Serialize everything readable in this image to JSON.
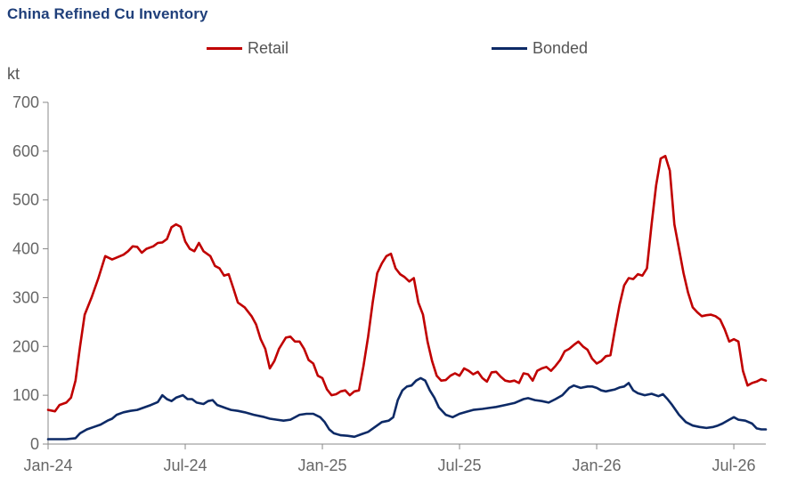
{
  "chart_data": {
    "type": "line",
    "title": "China Refined Cu Inventory",
    "ylabel": "kt",
    "xlabel": "",
    "ylim": [
      0,
      700
    ],
    "yticks": [
      0,
      100,
      200,
      300,
      400,
      500,
      600,
      700
    ],
    "xticks": [
      "Jan-24",
      "Jul-24",
      "Jan-25",
      "Jul-25",
      "Jan-26",
      "Jul-26"
    ],
    "xtick_positions": [
      0,
      6,
      12,
      18,
      24,
      30
    ],
    "xlim": [
      0,
      31.4
    ],
    "legend_position": "top-center",
    "grid": false,
    "series": [
      {
        "name": "Retail",
        "color": "#c00000",
        "points": [
          [
            0.0,
            70
          ],
          [
            0.3,
            67
          ],
          [
            0.5,
            80
          ],
          [
            0.8,
            85
          ],
          [
            1.0,
            95
          ],
          [
            1.2,
            130
          ],
          [
            1.4,
            200
          ],
          [
            1.6,
            265
          ],
          [
            1.9,
            300
          ],
          [
            2.2,
            340
          ],
          [
            2.5,
            385
          ],
          [
            2.8,
            378
          ],
          [
            3.0,
            382
          ],
          [
            3.3,
            388
          ],
          [
            3.5,
            395
          ],
          [
            3.7,
            405
          ],
          [
            3.9,
            404
          ],
          [
            4.1,
            392
          ],
          [
            4.3,
            400
          ],
          [
            4.6,
            405
          ],
          [
            4.8,
            412
          ],
          [
            5.0,
            413
          ],
          [
            5.2,
            420
          ],
          [
            5.4,
            444
          ],
          [
            5.6,
            450
          ],
          [
            5.8,
            445
          ],
          [
            6.0,
            415
          ],
          [
            6.2,
            400
          ],
          [
            6.4,
            395
          ],
          [
            6.6,
            412
          ],
          [
            6.8,
            395
          ],
          [
            7.1,
            385
          ],
          [
            7.3,
            365
          ],
          [
            7.5,
            360
          ],
          [
            7.7,
            345
          ],
          [
            7.9,
            348
          ],
          [
            8.1,
            320
          ],
          [
            8.3,
            290
          ],
          [
            8.6,
            280
          ],
          [
            8.9,
            262
          ],
          [
            9.1,
            245
          ],
          [
            9.3,
            215
          ],
          [
            9.5,
            195
          ],
          [
            9.7,
            155
          ],
          [
            9.9,
            170
          ],
          [
            10.1,
            195
          ],
          [
            10.4,
            218
          ],
          [
            10.6,
            220
          ],
          [
            10.8,
            210
          ],
          [
            11.0,
            210
          ],
          [
            11.2,
            195
          ],
          [
            11.4,
            172
          ],
          [
            11.6,
            165
          ],
          [
            11.8,
            140
          ],
          [
            12.0,
            135
          ],
          [
            12.2,
            112
          ],
          [
            12.4,
            100
          ],
          [
            12.6,
            102
          ],
          [
            12.8,
            108
          ],
          [
            13.0,
            110
          ],
          [
            13.2,
            100
          ],
          [
            13.4,
            108
          ],
          [
            13.6,
            110
          ],
          [
            13.8,
            160
          ],
          [
            14.0,
            220
          ],
          [
            14.2,
            290
          ],
          [
            14.4,
            350
          ],
          [
            14.6,
            370
          ],
          [
            14.8,
            385
          ],
          [
            15.0,
            390
          ],
          [
            15.2,
            360
          ],
          [
            15.4,
            348
          ],
          [
            15.6,
            342
          ],
          [
            15.8,
            333
          ],
          [
            16.0,
            340
          ],
          [
            16.2,
            290
          ],
          [
            16.4,
            265
          ],
          [
            16.6,
            210
          ],
          [
            16.8,
            170
          ],
          [
            17.0,
            140
          ],
          [
            17.2,
            130
          ],
          [
            17.4,
            131
          ],
          [
            17.6,
            140
          ],
          [
            17.8,
            145
          ],
          [
            18.0,
            140
          ],
          [
            18.2,
            155
          ],
          [
            18.4,
            150
          ],
          [
            18.6,
            143
          ],
          [
            18.8,
            148
          ],
          [
            19.0,
            135
          ],
          [
            19.2,
            128
          ],
          [
            19.4,
            147
          ],
          [
            19.6,
            148
          ],
          [
            19.8,
            138
          ],
          [
            20.0,
            130
          ],
          [
            20.2,
            128
          ],
          [
            20.4,
            130
          ],
          [
            20.6,
            125
          ],
          [
            20.8,
            145
          ],
          [
            21.0,
            143
          ],
          [
            21.2,
            130
          ],
          [
            21.4,
            150
          ],
          [
            21.6,
            155
          ],
          [
            21.8,
            158
          ],
          [
            22.0,
            150
          ],
          [
            22.2,
            160
          ],
          [
            22.4,
            172
          ],
          [
            22.6,
            190
          ],
          [
            22.8,
            195
          ],
          [
            23.0,
            203
          ],
          [
            23.2,
            210
          ],
          [
            23.4,
            200
          ],
          [
            23.6,
            193
          ],
          [
            23.8,
            175
          ],
          [
            24.0,
            165
          ],
          [
            24.2,
            170
          ],
          [
            24.4,
            180
          ],
          [
            24.6,
            182
          ],
          [
            24.8,
            235
          ],
          [
            25.0,
            285
          ],
          [
            25.2,
            325
          ],
          [
            25.4,
            340
          ],
          [
            25.6,
            338
          ],
          [
            25.8,
            348
          ],
          [
            26.0,
            345
          ],
          [
            26.2,
            360
          ],
          [
            26.4,
            450
          ],
          [
            26.6,
            530
          ],
          [
            26.8,
            585
          ],
          [
            27.0,
            590
          ],
          [
            27.2,
            560
          ],
          [
            27.4,
            450
          ],
          [
            27.6,
            400
          ],
          [
            27.8,
            350
          ],
          [
            28.0,
            310
          ],
          [
            28.2,
            280
          ],
          [
            28.4,
            270
          ],
          [
            28.6,
            262
          ],
          [
            28.8,
            264
          ],
          [
            29.0,
            265
          ],
          [
            29.2,
            262
          ],
          [
            29.4,
            255
          ],
          [
            29.6,
            235
          ],
          [
            29.8,
            210
          ],
          [
            30.0,
            215
          ],
          [
            30.2,
            210
          ],
          [
            30.4,
            150
          ],
          [
            30.6,
            120
          ],
          [
            30.8,
            125
          ],
          [
            31.0,
            128
          ],
          [
            31.2,
            133
          ],
          [
            31.4,
            130
          ]
        ]
      },
      {
        "name": "Bonded",
        "color": "#0d2a66",
        "points": [
          [
            0.0,
            10
          ],
          [
            0.8,
            10
          ],
          [
            1.2,
            12
          ],
          [
            1.4,
            22
          ],
          [
            1.7,
            30
          ],
          [
            2.0,
            35
          ],
          [
            2.3,
            40
          ],
          [
            2.6,
            48
          ],
          [
            2.8,
            52
          ],
          [
            3.0,
            60
          ],
          [
            3.3,
            65
          ],
          [
            3.6,
            68
          ],
          [
            3.9,
            70
          ],
          [
            4.2,
            75
          ],
          [
            4.5,
            80
          ],
          [
            4.8,
            86
          ],
          [
            5.0,
            100
          ],
          [
            5.2,
            92
          ],
          [
            5.4,
            88
          ],
          [
            5.6,
            95
          ],
          [
            5.9,
            100
          ],
          [
            6.1,
            92
          ],
          [
            6.3,
            92
          ],
          [
            6.5,
            85
          ],
          [
            6.8,
            82
          ],
          [
            7.0,
            88
          ],
          [
            7.2,
            90
          ],
          [
            7.4,
            80
          ],
          [
            7.7,
            75
          ],
          [
            8.0,
            70
          ],
          [
            8.3,
            68
          ],
          [
            8.6,
            65
          ],
          [
            9.0,
            60
          ],
          [
            9.4,
            56
          ],
          [
            9.7,
            52
          ],
          [
            10.0,
            50
          ],
          [
            10.3,
            48
          ],
          [
            10.6,
            50
          ],
          [
            11.0,
            60
          ],
          [
            11.3,
            62
          ],
          [
            11.6,
            62
          ],
          [
            11.9,
            55
          ],
          [
            12.1,
            45
          ],
          [
            12.3,
            30
          ],
          [
            12.5,
            22
          ],
          [
            12.8,
            18
          ],
          [
            13.1,
            17
          ],
          [
            13.4,
            15
          ],
          [
            13.7,
            20
          ],
          [
            14.0,
            25
          ],
          [
            14.3,
            35
          ],
          [
            14.6,
            45
          ],
          [
            14.9,
            48
          ],
          [
            15.1,
            55
          ],
          [
            15.3,
            90
          ],
          [
            15.5,
            110
          ],
          [
            15.7,
            118
          ],
          [
            15.9,
            120
          ],
          [
            16.1,
            130
          ],
          [
            16.3,
            135
          ],
          [
            16.5,
            130
          ],
          [
            16.7,
            110
          ],
          [
            16.9,
            95
          ],
          [
            17.1,
            75
          ],
          [
            17.4,
            60
          ],
          [
            17.7,
            55
          ],
          [
            18.0,
            62
          ],
          [
            18.3,
            66
          ],
          [
            18.6,
            70
          ],
          [
            19.0,
            72
          ],
          [
            19.3,
            74
          ],
          [
            19.6,
            76
          ],
          [
            20.0,
            80
          ],
          [
            20.4,
            84
          ],
          [
            20.8,
            92
          ],
          [
            21.0,
            94
          ],
          [
            21.3,
            90
          ],
          [
            21.6,
            88
          ],
          [
            21.9,
            85
          ],
          [
            22.2,
            92
          ],
          [
            22.5,
            100
          ],
          [
            22.8,
            115
          ],
          [
            23.0,
            120
          ],
          [
            23.3,
            115
          ],
          [
            23.6,
            118
          ],
          [
            23.8,
            118
          ],
          [
            24.0,
            115
          ],
          [
            24.2,
            110
          ],
          [
            24.4,
            108
          ],
          [
            24.6,
            110
          ],
          [
            24.8,
            112
          ],
          [
            25.0,
            116
          ],
          [
            25.2,
            118
          ],
          [
            25.4,
            125
          ],
          [
            25.6,
            110
          ],
          [
            25.8,
            104
          ],
          [
            26.1,
            100
          ],
          [
            26.4,
            103
          ],
          [
            26.7,
            98
          ],
          [
            26.9,
            102
          ],
          [
            27.1,
            92
          ],
          [
            27.3,
            80
          ],
          [
            27.6,
            60
          ],
          [
            27.9,
            45
          ],
          [
            28.2,
            38
          ],
          [
            28.5,
            35
          ],
          [
            28.8,
            33
          ],
          [
            29.1,
            35
          ],
          [
            29.3,
            38
          ],
          [
            29.5,
            42
          ],
          [
            29.8,
            50
          ],
          [
            30.0,
            55
          ],
          [
            30.2,
            50
          ],
          [
            30.5,
            48
          ],
          [
            30.8,
            42
          ],
          [
            31.0,
            32
          ],
          [
            31.2,
            30
          ],
          [
            31.4,
            30
          ]
        ]
      }
    ]
  }
}
